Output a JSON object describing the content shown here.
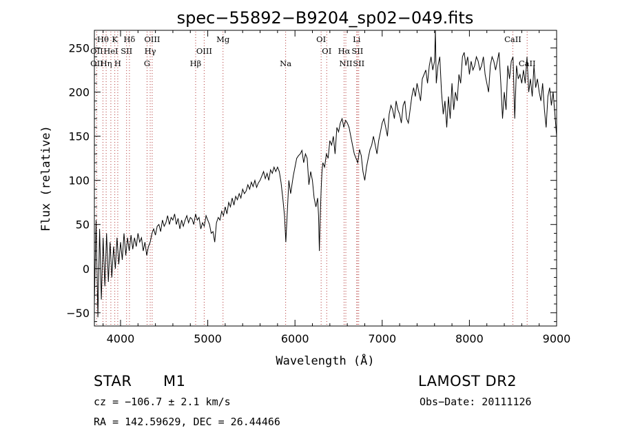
{
  "chart_data": {
    "type": "line",
    "title": "spec−55892−B9204_sp02−049.fits",
    "xlabel": "Wavelength (Å)",
    "ylabel": "Flux (relative)",
    "xlim": [
      3700,
      9000
    ],
    "ylim": [
      -65,
      270
    ],
    "x_ticks": [
      4000,
      5000,
      6000,
      7000,
      8000,
      9000
    ],
    "y_ticks": [
      -50,
      0,
      50,
      100,
      150,
      200,
      250
    ],
    "x_tick_labels": [
      "4000",
      "5000",
      "6000",
      "7000",
      "8000",
      "9000"
    ],
    "y_tick_labels": [
      "−50",
      "0",
      "50",
      "100",
      "150",
      "200",
      "250"
    ],
    "series": [
      {
        "values_x": [
          3700,
          3720,
          3740,
          3760,
          3780,
          3800,
          3820,
          3840,
          3860,
          3880,
          3900,
          3920,
          3940,
          3960,
          3980,
          4000,
          4020,
          4040,
          4060,
          4080,
          4100,
          4120,
          4140,
          4160,
          4180,
          4200,
          4220,
          4240,
          4260,
          4280,
          4300,
          4320,
          4340,
          4360,
          4380,
          4400,
          4420,
          4440,
          4460,
          4480,
          4500,
          4520,
          4540,
          4560,
          4580,
          4600,
          4620,
          4640,
          4660,
          4680,
          4700,
          4720,
          4740,
          4760,
          4780,
          4800,
          4820,
          4840,
          4860,
          4880,
          4900,
          4920,
          4940,
          4960,
          4980,
          5000,
          5020,
          5040,
          5060,
          5080,
          5100,
          5120,
          5140,
          5160,
          5180,
          5200,
          5220,
          5240,
          5260,
          5280,
          5300,
          5320,
          5340,
          5360,
          5380,
          5400,
          5420,
          5440,
          5460,
          5480,
          5500,
          5520,
          5540,
          5560,
          5580,
          5600,
          5620,
          5640,
          5660,
          5680,
          5700,
          5720,
          5740,
          5760,
          5780,
          5800,
          5820,
          5840,
          5860,
          5880,
          5895,
          5910,
          5930,
          5950,
          5980,
          6000,
          6020,
          6040,
          6060,
          6080,
          6100,
          6120,
          6140,
          6160,
          6180,
          6200,
          6220,
          6240,
          6260,
          6270,
          6280,
          6290,
          6300,
          6310,
          6320,
          6340,
          6360,
          6380,
          6400,
          6420,
          6440,
          6460,
          6480,
          6500,
          6520,
          6540,
          6560,
          6580,
          6600,
          6620,
          6640,
          6660,
          6680,
          6700,
          6720,
          6740,
          6760,
          6780,
          6800,
          6820,
          6840,
          6860,
          6880,
          6900,
          6920,
          6940,
          6960,
          6980,
          7000,
          7020,
          7040,
          7060,
          7080,
          7100,
          7120,
          7140,
          7160,
          7180,
          7200,
          7220,
          7240,
          7260,
          7280,
          7300,
          7320,
          7340,
          7360,
          7380,
          7400,
          7420,
          7440,
          7460,
          7480,
          7500,
          7520,
          7540,
          7560,
          7580,
          7600,
          7610,
          7620,
          7640,
          7660,
          7680,
          7700,
          7720,
          7740,
          7760,
          7780,
          7800,
          7820,
          7840,
          7860,
          7880,
          7900,
          7920,
          7940,
          7960,
          7980,
          8000,
          8020,
          8040,
          8060,
          8080,
          8100,
          8120,
          8140,
          8160,
          8180,
          8200,
          8220,
          8240,
          8260,
          8280,
          8300,
          8320,
          8340,
          8360,
          8380,
          8400,
          8420,
          8440,
          8460,
          8480,
          8500,
          8520,
          8540,
          8560,
          8580,
          8600,
          8620,
          8640,
          8660,
          8680,
          8700,
          8720,
          8740,
          8760,
          8780,
          8800,
          8820,
          8840,
          8860,
          8880,
          8900,
          8920,
          8940,
          8960,
          8980,
          9000
        ],
        "values_y": [
          -40,
          55,
          -55,
          45,
          -35,
          35,
          -20,
          40,
          -15,
          30,
          -10,
          25,
          0,
          35,
          5,
          30,
          10,
          40,
          15,
          35,
          20,
          38,
          22,
          35,
          25,
          40,
          30,
          35,
          20,
          30,
          15,
          25,
          30,
          40,
          45,
          38,
          48,
          50,
          42,
          55,
          48,
          52,
          60,
          50,
          58,
          55,
          62,
          50,
          57,
          45,
          55,
          48,
          55,
          60,
          52,
          58,
          56,
          50,
          62,
          55,
          58,
          45,
          52,
          48,
          60,
          55,
          50,
          40,
          42,
          30,
          52,
          58,
          55,
          65,
          60,
          70,
          62,
          75,
          70,
          80,
          72,
          82,
          78,
          85,
          80,
          90,
          85,
          88,
          95,
          90,
          98,
          93,
          100,
          92,
          97,
          100,
          105,
          110,
          102,
          108,
          100,
          112,
          108,
          115,
          110,
          115,
          110,
          98,
          80,
          60,
          30,
          60,
          100,
          85,
          105,
          115,
          125,
          128,
          130,
          134,
          120,
          130,
          125,
          95,
          110,
          100,
          80,
          70,
          80,
          60,
          20,
          60,
          90,
          110,
          120,
          115,
          130,
          125,
          145,
          140,
          150,
          130,
          160,
          155,
          165,
          170,
          160,
          168,
          165,
          160,
          150,
          140,
          130,
          125,
          120,
          135,
          128,
          110,
          100,
          115,
          125,
          135,
          140,
          150,
          140,
          130,
          145,
          155,
          165,
          170,
          160,
          150,
          175,
          185,
          180,
          170,
          190,
          180,
          175,
          165,
          185,
          190,
          170,
          165,
          180,
          195,
          205,
          195,
          210,
          200,
          190,
          215,
          220,
          225,
          210,
          230,
          240,
          225,
          235,
          270,
          210,
          230,
          240,
          200,
          175,
          190,
          160,
          195,
          170,
          210,
          180,
          200,
          190,
          220,
          210,
          240,
          245,
          230,
          240,
          220,
          235,
          225,
          230,
          240,
          235,
          225,
          230,
          240,
          220,
          210,
          200,
          230,
          240,
          235,
          225,
          235,
          245,
          210,
          170,
          200,
          180,
          230,
          215,
          235,
          240,
          170,
          230,
          215,
          220,
          210,
          225,
          210,
          240,
          200,
          215,
          195,
          230,
          205,
          215,
          200,
          190,
          210,
          180,
          160,
          195,
          205,
          185,
          200,
          175,
          150
        ]
      }
    ],
    "spectral_lines": [
      {
        "label": "Hθ",
        "wl": 3798,
        "row": 0
      },
      {
        "label": "K",
        "wl": 3934,
        "row": 0
      },
      {
        "label": "Hδ",
        "wl": 4102,
        "row": 0
      },
      {
        "label": "OIII",
        "wl": 4363,
        "row": 0
      },
      {
        "label": "Mg",
        "wl": 5175,
        "row": 0
      },
      {
        "label": "OI",
        "wl": 6300,
        "row": 0
      },
      {
        "label": "Li",
        "wl": 6708,
        "row": 0
      },
      {
        "label": "CaII",
        "wl": 8498,
        "row": 0
      },
      {
        "label": "OII",
        "wl": 3727,
        "row": 1
      },
      {
        "label": "HeI",
        "wl": 3889,
        "row": 1
      },
      {
        "label": "SII",
        "wl": 4069,
        "row": 1
      },
      {
        "label": "Hγ",
        "wl": 4340,
        "row": 1
      },
      {
        "label": "OIII",
        "wl": 4959,
        "row": 1
      },
      {
        "label": "OI",
        "wl": 6364,
        "row": 1
      },
      {
        "label": "Hα",
        "wl": 6563,
        "row": 1
      },
      {
        "label": "SII",
        "wl": 6716,
        "row": 1
      },
      {
        "label": "OII",
        "wl": 3727,
        "row": 2
      },
      {
        "label": "Hη",
        "wl": 3835,
        "row": 2
      },
      {
        "label": "H",
        "wl": 3968,
        "row": 2
      },
      {
        "label": "G",
        "wl": 4304,
        "row": 2
      },
      {
        "label": "Hβ",
        "wl": 4861,
        "row": 2
      },
      {
        "label": "Na",
        "wl": 5893,
        "row": 2
      },
      {
        "label": "NII",
        "wl": 6583,
        "row": 2
      },
      {
        "label": "SII",
        "wl": 6731,
        "row": 2
      },
      {
        "label": "CaII",
        "wl": 8662,
        "row": 2
      }
    ]
  },
  "info": {
    "object_class": "STAR",
    "subclass": "M1",
    "survey": "LAMOST DR2",
    "cz": "cz = −106.7 ± 2.1 km/s",
    "obs_date": "Obs−Date: 20111126",
    "coords": "RA = 142.59629, DEC =  26.44466"
  }
}
